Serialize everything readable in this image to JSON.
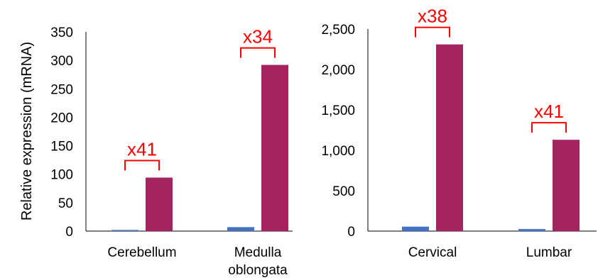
{
  "colors": {
    "blue": "#4472C4",
    "magenta": "#A5235F",
    "annotation": "#FF0000",
    "axis": "#000000"
  },
  "chart_data": [
    {
      "type": "bar",
      "ylabel": "Relative expression (mRNA)",
      "ylim": [
        0,
        350
      ],
      "yticks": [
        0,
        50,
        100,
        150,
        200,
        250,
        300,
        350
      ],
      "ytick_labels": [
        "0",
        "50",
        "100",
        "150",
        "200",
        "250",
        "300",
        "350"
      ],
      "categories": [
        "Cerebellum",
        "Medulla oblongata"
      ],
      "category_lines": [
        [
          "Cerebellum"
        ],
        [
          "Medulla",
          "oblongata"
        ]
      ],
      "series": [
        {
          "color": "#4472C4",
          "values": [
            2,
            7
          ]
        },
        {
          "color": "#A5235F",
          "values": [
            94,
            292
          ]
        }
      ],
      "annotations": [
        "x41",
        "x34"
      ]
    },
    {
      "type": "bar",
      "ylabel": "",
      "ylim": [
        0,
        2500
      ],
      "yticks": [
        0,
        500,
        1000,
        1500,
        2000,
        2500
      ],
      "ytick_labels": [
        "0",
        "500",
        "1,000",
        "1,500",
        "2,000",
        "2,500"
      ],
      "categories": [
        "Cervical",
        "Lumbar"
      ],
      "category_lines": [
        [
          "Cervical"
        ],
        [
          "Lumbar"
        ]
      ],
      "series": [
        {
          "color": "#4472C4",
          "values": [
            55,
            25
          ]
        },
        {
          "color": "#A5235F",
          "values": [
            2310,
            1130
          ]
        }
      ],
      "annotations": [
        "x38",
        "x41"
      ]
    }
  ]
}
